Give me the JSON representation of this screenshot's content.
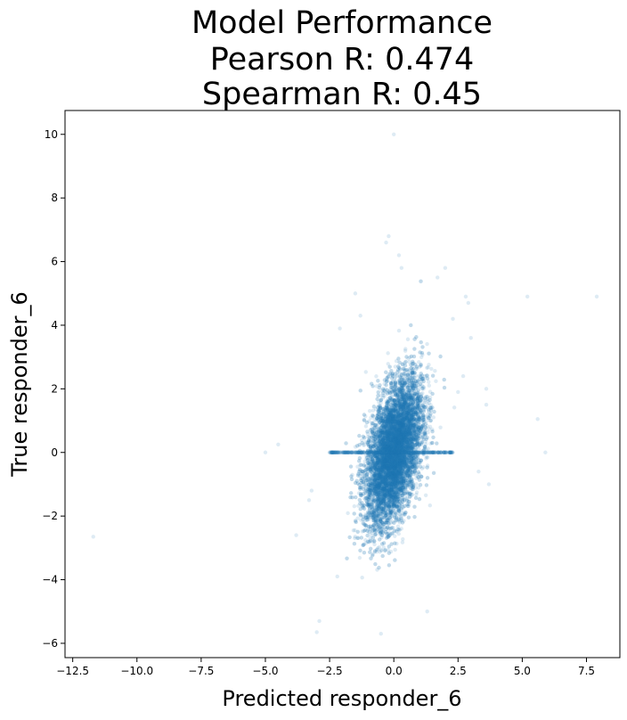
{
  "chart_data": {
    "type": "scatter",
    "title": [
      "Model Performance",
      "Pearson R: 0.474",
      "Spearman R: 0.45"
    ],
    "xlabel": "Predicted responder_6",
    "ylabel": "True responder_6",
    "xlim": [
      -12.8,
      8.8
    ],
    "ylim": [
      -6.45,
      10.75
    ],
    "xticks": [
      -12.5,
      -10.0,
      -7.5,
      -5.0,
      -2.5,
      0.0,
      2.5,
      5.0,
      7.5
    ],
    "xtick_labels": [
      "−12.5",
      "−10.0",
      "−7.5",
      "−5.0",
      "−2.5",
      "0.0",
      "2.5",
      "5.0",
      "7.5"
    ],
    "yticks": [
      -6,
      -4,
      -2,
      0,
      2,
      4,
      6,
      8,
      10
    ],
    "ytick_labels": [
      "−6",
      "−4",
      "−2",
      "0",
      "2",
      "4",
      "6",
      "8",
      "10"
    ],
    "grid": false,
    "legend": "none",
    "point_color": "#1f77b4",
    "point_alpha": 0.15,
    "dense_cluster": {
      "center": [
        0.0,
        0.0
      ],
      "x_spread": 0.55,
      "y_spread": 1.15,
      "correlation": 0.474,
      "n_points": 9000
    },
    "points": [
      [
        -11.7,
        -2.65
      ],
      [
        -5.0,
        0.0
      ],
      [
        -4.5,
        0.25
      ],
      [
        -3.8,
        -2.6
      ],
      [
        -3.3,
        -1.5
      ],
      [
        -3.2,
        -1.2
      ],
      [
        -3.0,
        -5.65
      ],
      [
        -2.9,
        -5.3
      ],
      [
        -2.2,
        -3.9
      ],
      [
        -2.1,
        3.9
      ],
      [
        -1.5,
        5.0
      ],
      [
        -1.3,
        4.3
      ],
      [
        -0.5,
        -5.7
      ],
      [
        -0.3,
        6.6
      ],
      [
        -0.2,
        6.8
      ],
      [
        0.0,
        10.0
      ],
      [
        0.2,
        6.2
      ],
      [
        0.3,
        5.8
      ],
      [
        1.3,
        -5.0
      ],
      [
        1.7,
        5.5
      ],
      [
        2.0,
        5.8
      ],
      [
        2.3,
        4.2
      ],
      [
        2.5,
        1.9
      ],
      [
        2.7,
        2.4
      ],
      [
        2.8,
        4.9
      ],
      [
        2.9,
        4.7
      ],
      [
        3.0,
        3.6
      ],
      [
        3.3,
        -0.6
      ],
      [
        3.6,
        2.0
      ],
      [
        3.6,
        1.5
      ],
      [
        3.7,
        -1.0
      ],
      [
        5.2,
        4.9
      ],
      [
        5.6,
        1.05
      ],
      [
        5.9,
        0.0
      ],
      [
        7.9,
        4.9
      ]
    ]
  }
}
